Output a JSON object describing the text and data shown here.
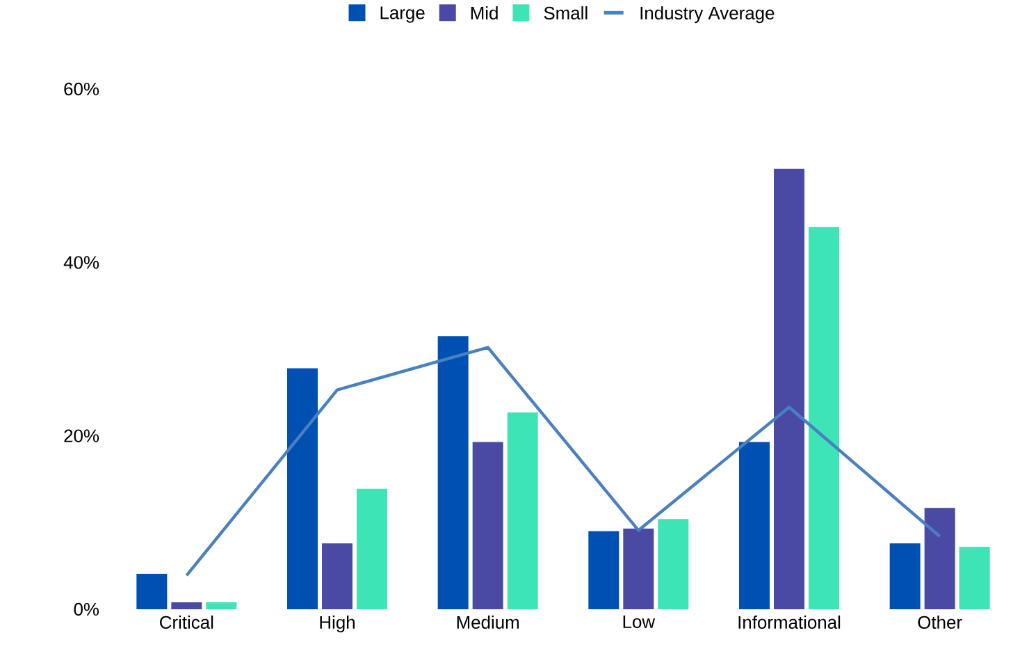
{
  "chart_data": {
    "type": "bar",
    "categories": [
      "Critical",
      "High",
      "Medium",
      "Low",
      "Informational",
      "Other"
    ],
    "series": [
      {
        "name": "Large",
        "color": "#0050b4",
        "values": [
          4.1,
          27.8,
          31.5,
          9.0,
          19.3,
          7.6
        ]
      },
      {
        "name": "Mid",
        "color": "#4a4aa4",
        "values": [
          0.8,
          7.6,
          19.3,
          9.3,
          50.8,
          11.7
        ]
      },
      {
        "name": "Small",
        "color": "#3de4b6",
        "values": [
          0.8,
          13.9,
          22.7,
          10.4,
          44.1,
          7.2
        ]
      },
      {
        "name": "Industry Average",
        "type": "line",
        "color": "#4a7fc0",
        "values": [
          3.9,
          25.3,
          30.2,
          9.1,
          23.3,
          8.4
        ]
      }
    ],
    "ylim": [
      0,
      60
    ],
    "yticks": [
      {
        "value": 0,
        "label": "0%"
      },
      {
        "value": 20,
        "label": "20%"
      },
      {
        "value": 40,
        "label": "40%"
      },
      {
        "value": 60,
        "label": "60%"
      }
    ],
    "legend": "top"
  }
}
